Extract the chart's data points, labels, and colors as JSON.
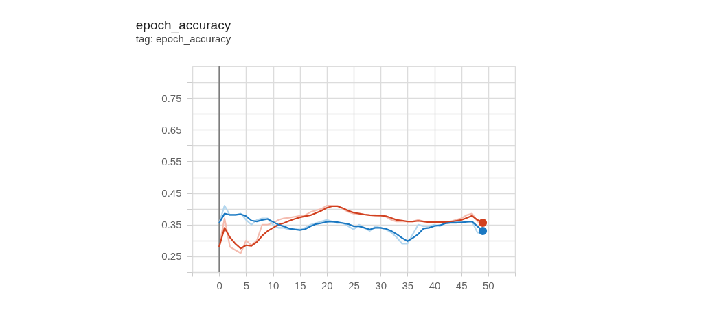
{
  "chart_data": {
    "type": "line",
    "title": "epoch_accuracy",
    "subtitle": "tag: epoch_accuracy",
    "x": [
      0,
      1,
      2,
      3,
      4,
      5,
      6,
      7,
      8,
      9,
      10,
      11,
      12,
      13,
      14,
      15,
      16,
      17,
      18,
      19,
      20,
      21,
      22,
      23,
      24,
      25,
      26,
      27,
      28,
      29,
      30,
      31,
      32,
      33,
      34,
      35,
      36,
      37,
      38,
      39,
      40,
      41,
      42,
      43,
      44,
      45,
      46,
      47,
      48,
      49
    ],
    "series": [
      {
        "color": "#f4bcb0",
        "values": [
          0.28,
          0.37,
          0.28,
          0.27,
          0.26,
          0.3,
          0.285,
          0.3,
          0.35,
          0.35,
          0.355,
          0.365,
          0.37,
          0.372,
          0.375,
          0.378,
          0.38,
          0.39,
          0.395,
          0.4,
          0.41,
          0.41,
          0.41,
          0.4,
          0.39,
          0.385,
          0.385,
          0.382,
          0.38,
          0.38,
          0.378,
          0.375,
          0.365,
          0.36,
          0.36,
          0.36,
          0.36,
          0.365,
          0.36,
          0.358,
          0.358,
          0.358,
          0.358,
          0.36,
          0.365,
          0.37,
          0.38,
          0.385,
          0.36,
          0.355
        ]
      },
      {
        "color": "#b3d6ee",
        "values": [
          0.355,
          0.41,
          0.38,
          0.38,
          0.385,
          0.365,
          0.35,
          0.365,
          0.37,
          0.37,
          0.35,
          0.34,
          0.34,
          0.335,
          0.335,
          0.335,
          0.34,
          0.35,
          0.355,
          0.36,
          0.365,
          0.36,
          0.355,
          0.355,
          0.345,
          0.335,
          0.35,
          0.34,
          0.33,
          0.345,
          0.34,
          0.335,
          0.325,
          0.31,
          0.29,
          0.29,
          0.32,
          0.35,
          0.345,
          0.345,
          0.35,
          0.345,
          0.355,
          0.355,
          0.355,
          0.36,
          0.36,
          0.36,
          0.325,
          0.325
        ]
      },
      {
        "color": "#d1401f",
        "values": [
          0.28,
          0.34,
          0.31,
          0.29,
          0.275,
          0.285,
          0.283,
          0.295,
          0.315,
          0.33,
          0.34,
          0.35,
          0.355,
          0.362,
          0.368,
          0.373,
          0.377,
          0.38,
          0.387,
          0.394,
          0.403,
          0.408,
          0.408,
          0.402,
          0.394,
          0.388,
          0.385,
          0.382,
          0.38,
          0.379,
          0.379,
          0.377,
          0.371,
          0.365,
          0.363,
          0.36,
          0.36,
          0.362,
          0.36,
          0.358,
          0.358,
          0.358,
          0.358,
          0.359,
          0.362,
          0.365,
          0.371,
          0.378,
          0.365,
          0.356
        ]
      },
      {
        "color": "#1a78c2",
        "values": [
          0.355,
          0.385,
          0.381,
          0.381,
          0.383,
          0.377,
          0.363,
          0.36,
          0.365,
          0.368,
          0.359,
          0.35,
          0.345,
          0.338,
          0.335,
          0.333,
          0.336,
          0.345,
          0.352,
          0.355,
          0.359,
          0.36,
          0.358,
          0.355,
          0.352,
          0.345,
          0.345,
          0.34,
          0.335,
          0.34,
          0.34,
          0.337,
          0.33,
          0.32,
          0.308,
          0.298,
          0.308,
          0.32,
          0.338,
          0.34,
          0.346,
          0.348,
          0.354,
          0.356,
          0.357,
          0.357,
          0.359,
          0.36,
          0.345,
          0.33
        ]
      },
      {
        "type": "scatter",
        "marker": "circle",
        "color": "#d1401f",
        "x": [
          49
        ],
        "values": [
          0.356
        ]
      },
      {
        "type": "scatter",
        "marker": "circle",
        "color": "#1a78c2",
        "x": [
          49
        ],
        "values": [
          0.33
        ]
      }
    ],
    "xlim": [
      -5,
      55
    ],
    "xticks": [
      {
        "value": -5,
        "label": null
      },
      0,
      5,
      10,
      15,
      20,
      25,
      30,
      35,
      40,
      45,
      50,
      {
        "value": 55,
        "label": null
      }
    ],
    "ylim": [
      0.2,
      0.85
    ],
    "yticks": [
      {
        "value": 0.2,
        "label": null
      },
      0.25,
      {
        "value": 0.3,
        "label": null
      },
      0.35,
      {
        "value": 0.4,
        "label": null
      },
      0.45,
      {
        "value": 0.5,
        "label": null
      },
      0.55,
      {
        "value": 0.6,
        "label": null
      },
      0.65,
      {
        "value": 0.7,
        "label": null
      },
      0.75,
      {
        "value": 0.8,
        "label": null
      }
    ],
    "ref_lines": [
      {
        "axis": "x",
        "value": 0,
        "color": "#757575"
      }
    ],
    "grid": true,
    "marker": "none",
    "line_style": "solid"
  }
}
